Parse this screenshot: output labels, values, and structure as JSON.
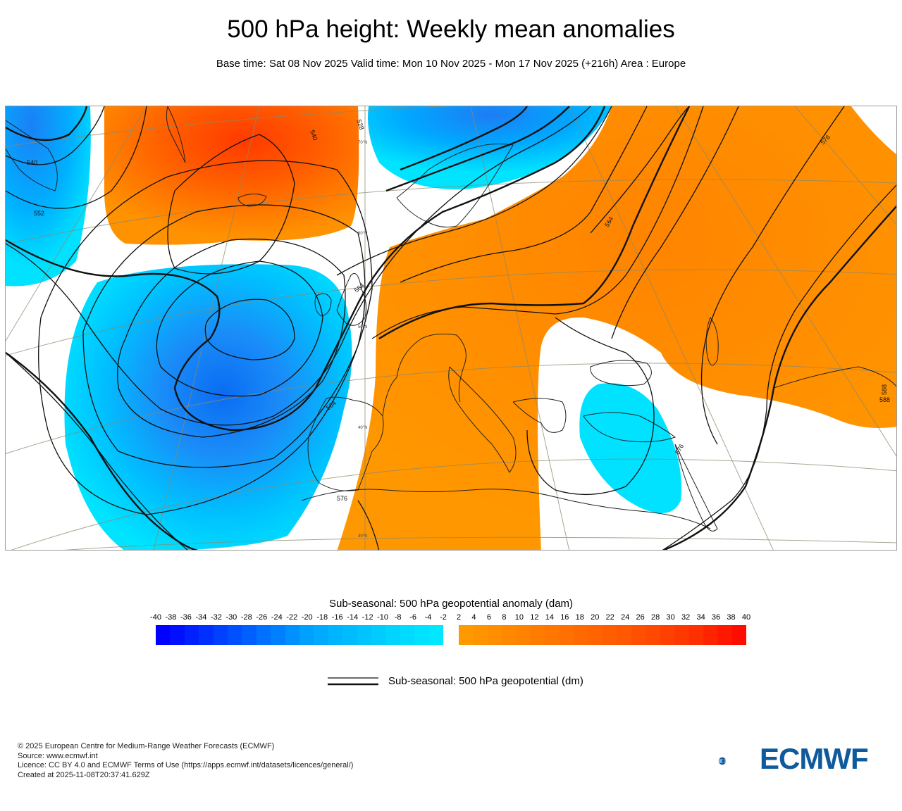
{
  "header": {
    "title": "500 hPa height: Weekly mean anomalies",
    "subtitle": "Base time: Sat 08 Nov 2025 Valid time: Mon 10 Nov 2025 - Mon 17 Nov 2025 (+216h) Area : Europe"
  },
  "map": {
    "area": "Europe",
    "contour_labels": [
      "540",
      "552",
      "564",
      "576",
      "588",
      "540",
      "528",
      "564",
      "576",
      "576",
      "588",
      "564"
    ],
    "lat_labels": [
      "70°N",
      "60°N",
      "50°N",
      "40°N",
      "30°N"
    ]
  },
  "colorbar": {
    "title": "Sub-seasonal: 500 hPa geopotential anomaly (dam)",
    "negative_ticks": [
      "-40",
      "-38",
      "-36",
      "-34",
      "-32",
      "-30",
      "-28",
      "-26",
      "-24",
      "-22",
      "-20",
      "-18",
      "-16",
      "-14",
      "-12",
      "-10",
      "-8",
      "-6",
      "-4",
      "-2"
    ],
    "positive_ticks": [
      "2",
      "4",
      "6",
      "8",
      "10",
      "12",
      "14",
      "16",
      "18",
      "20",
      "22",
      "24",
      "26",
      "28",
      "30",
      "32",
      "34",
      "36",
      "38",
      "40"
    ],
    "negative_colors": [
      "#0000ff",
      "#0010ff",
      "#0020ff",
      "#0030ff",
      "#0040ff",
      "#0050ff",
      "#0060ff",
      "#0070ff",
      "#0080ff",
      "#0090ff",
      "#00a0ff",
      "#00aaff",
      "#00b4ff",
      "#00bcff",
      "#00c4ff",
      "#00ccff",
      "#00d4ff",
      "#00dcff",
      "#00e2ff",
      "#00e8ff"
    ],
    "positive_colors": [
      "#ff9900",
      "#ff9400",
      "#ff8e00",
      "#ff8800",
      "#ff8200",
      "#ff7c00",
      "#ff7600",
      "#ff7000",
      "#ff6a00",
      "#ff6400",
      "#ff5e00",
      "#ff5800",
      "#ff5000",
      "#ff4800",
      "#ff4000",
      "#ff3800",
      "#ff3000",
      "#ff2400",
      "#ff1800",
      "#ff0c00"
    ]
  },
  "legend": {
    "contour_label": "Sub-seasonal: 500 hPa geopotential (dm)"
  },
  "footer": {
    "copyright": "© 2025 European Centre for Medium-Range Weather Forecasts (ECMWF)",
    "source": "Source: www.ecmwf.int",
    "licence": "Licence: CC BY 4.0 and ECMWF Terms of Use (https://apps.ecmwf.int/datasets/licences/general/)",
    "created": "Created at 2025-11-08T20:37:41.629Z"
  },
  "logo": {
    "text": "ECMWF",
    "color": "#0e5a9c"
  }
}
